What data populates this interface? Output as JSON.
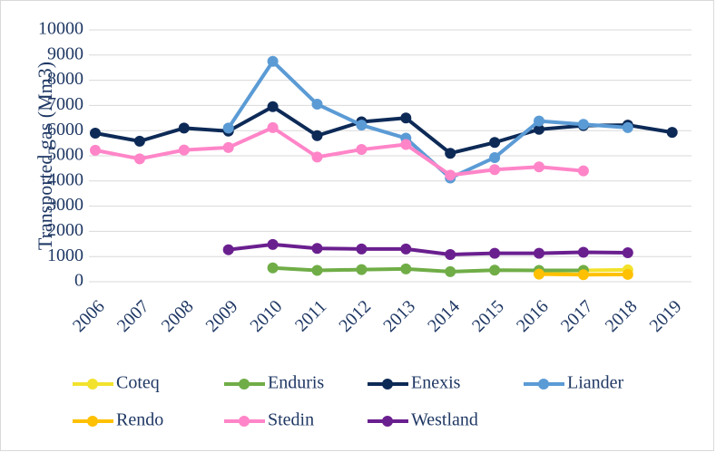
{
  "chart_data": {
    "type": "line",
    "y_label": "Transported gas (Mm3)",
    "categories": [
      "2006",
      "2007",
      "2008",
      "2009",
      "2010",
      "2011",
      "2012",
      "2013",
      "2014",
      "2015",
      "2016",
      "2017",
      "2018",
      "2019"
    ],
    "ylim": [
      0,
      10000
    ],
    "yticks": [
      0,
      1000,
      2000,
      3000,
      4000,
      5000,
      6000,
      7000,
      8000,
      9000,
      10000
    ],
    "grid": true,
    "legend": "bottom",
    "series": [
      {
        "name": "Coteq",
        "color": "#f2e22c",
        "values": [
          null,
          null,
          null,
          null,
          null,
          null,
          null,
          null,
          null,
          null,
          420,
          450,
          470,
          null
        ]
      },
      {
        "name": "Enduris",
        "color": "#70ad47",
        "values": [
          null,
          null,
          null,
          null,
          550,
          450,
          480,
          510,
          400,
          460,
          450,
          450,
          null,
          null
        ]
      },
      {
        "name": "Enexis",
        "color": "#0d2a57",
        "values": [
          5900,
          5580,
          6100,
          5980,
          6950,
          5800,
          6350,
          6500,
          5100,
          5530,
          6050,
          6200,
          6220,
          5930
        ]
      },
      {
        "name": "Liander",
        "color": "#5b9bd5",
        "values": [
          null,
          null,
          null,
          6100,
          8750,
          7050,
          6220,
          5700,
          4120,
          4930,
          6380,
          6250,
          6120,
          null
        ]
      },
      {
        "name": "Rendo",
        "color": "#ffc000",
        "values": [
          null,
          null,
          null,
          null,
          null,
          null,
          null,
          null,
          null,
          null,
          300,
          280,
          290,
          null
        ]
      },
      {
        "name": "Stedin",
        "color": "#ff85c8",
        "values": [
          5220,
          4880,
          5230,
          5330,
          6120,
          4950,
          5250,
          5450,
          4230,
          4450,
          4560,
          4400,
          null,
          null
        ]
      },
      {
        "name": "Westland",
        "color": "#6a1f8f",
        "values": [
          null,
          null,
          null,
          1270,
          1480,
          1320,
          1300,
          1300,
          1080,
          1130,
          1130,
          1170,
          1150,
          null
        ]
      }
    ]
  }
}
